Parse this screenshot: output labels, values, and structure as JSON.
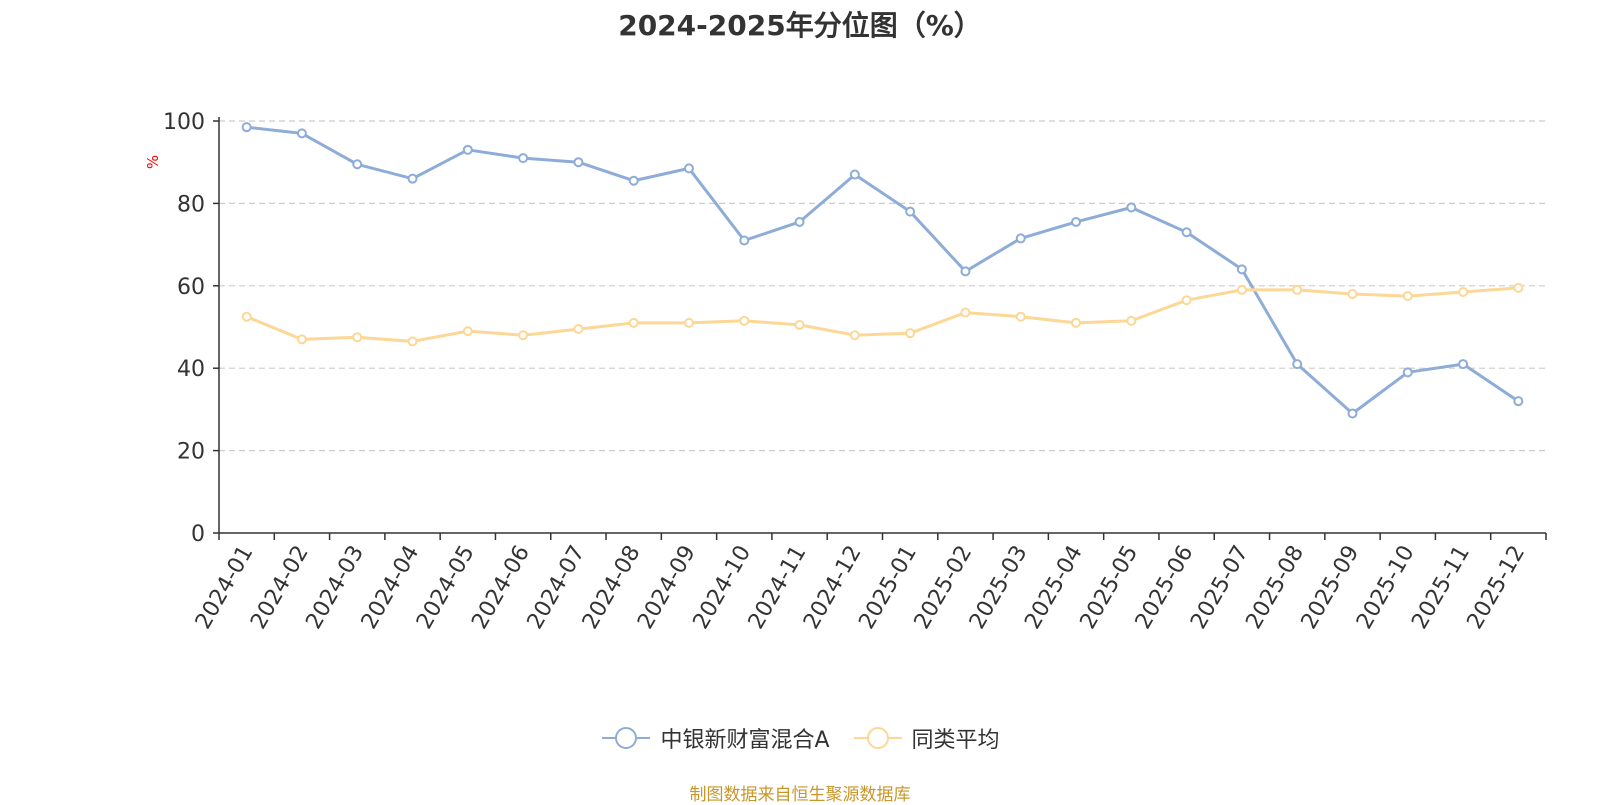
{
  "chart_data": {
    "type": "line",
    "title": "2024-2025年分位图（%）",
    "ylabel": "%",
    "ylim": [
      0,
      100
    ],
    "yticks": [
      0,
      20,
      40,
      60,
      80,
      100
    ],
    "grid": "horizontal-dashed",
    "legend_position": "bottom-center",
    "categories": [
      "2024-01",
      "2024-02",
      "2024-03",
      "2024-04",
      "2024-05",
      "2024-06",
      "2024-07",
      "2024-08",
      "2024-09",
      "2024-10",
      "2024-11",
      "2024-12",
      "2025-01",
      "2025-02",
      "2025-03",
      "2025-04",
      "2025-05",
      "2025-06",
      "2025-07",
      "2025-08",
      "2025-09",
      "2025-10",
      "2025-11",
      "2025-12"
    ],
    "series": [
      {
        "name": "中银新财富混合A",
        "color": "#8eacd8",
        "values": [
          98.5,
          97,
          89.5,
          86,
          93,
          91,
          90,
          85.5,
          88.5,
          71,
          75.5,
          87,
          78,
          63.5,
          71.5,
          75.5,
          79,
          73,
          64,
          41,
          29,
          39,
          41,
          32
        ]
      },
      {
        "name": "同类平均",
        "color": "#fcd796",
        "values": [
          52.5,
          47,
          47.5,
          46.5,
          49,
          48,
          49.5,
          51,
          51,
          51.5,
          50.5,
          48,
          48.5,
          53.5,
          52.5,
          51,
          51.5,
          56.5,
          59,
          59,
          58,
          57.5,
          58.5,
          59.5
        ]
      }
    ]
  },
  "source_note": "制图数据来自恒生聚源数据库"
}
